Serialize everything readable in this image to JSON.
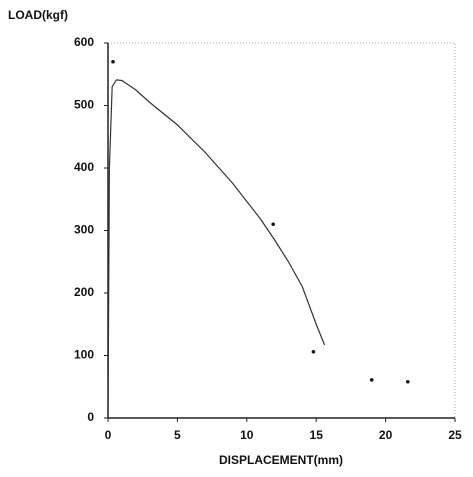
{
  "chart_data": {
    "type": "line",
    "y_label": "LOAD(kgf)",
    "x_label": "DISPLACEMENT(mm)",
    "xlim": [
      0,
      25
    ],
    "xticks": [
      0,
      5,
      10,
      15,
      20,
      25
    ],
    "ylim": [
      0,
      600
    ],
    "yticks": [
      0,
      100,
      200,
      300,
      400,
      500,
      600
    ],
    "series": [
      {
        "color": "#333333",
        "x": [
          0,
          0.1,
          0.3,
          0.6,
          1.0,
          2,
          3,
          5,
          7,
          9,
          11,
          12,
          13,
          14,
          15,
          15.6
        ],
        "values": [
          0,
          400,
          530,
          541,
          540,
          525,
          505,
          469,
          425,
          375,
          318,
          285,
          250,
          210,
          150,
          117
        ]
      }
    ],
    "points": {
      "color": "#111111",
      "x": [
        0.36,
        11.9,
        14.8,
        19.0,
        21.6
      ],
      "values": [
        570,
        310,
        106,
        61,
        58
      ]
    }
  }
}
